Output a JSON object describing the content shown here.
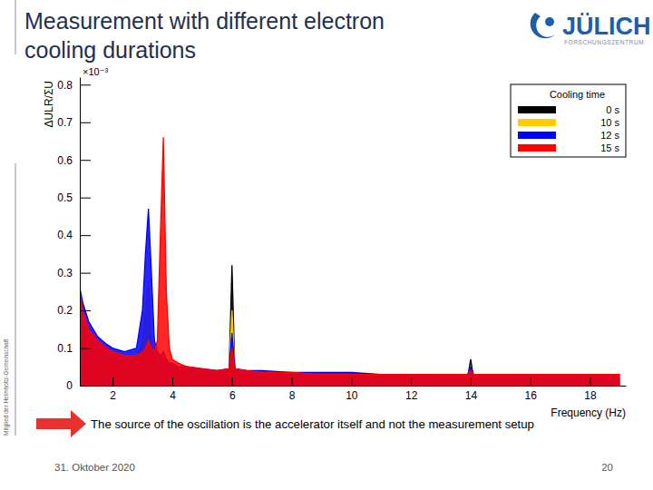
{
  "slide": {
    "title": [
      "Measurement with different electron",
      "cooling durations"
    ],
    "logo": "JÜLICH",
    "logo_subtitle": "FORSCHUNGSZENTRUM",
    "side_text": "Mitglied der Helmholtz-Gemeinschaft",
    "note": "The source of the oscillation is the accelerator itself and not the measurement setup",
    "date": "31. Oktober 2020",
    "page": "20"
  },
  "chart_data": {
    "type": "line",
    "xlabel": "Frequency (Hz)",
    "ylabel": "ΔULR/ΣU",
    "annotations": [
      "×10⁻³"
    ],
    "legend_title": "Cooling time",
    "legend": "upper right",
    "grid": false,
    "xlim": [
      0.9,
      19.2
    ],
    "xticks": [
      2,
      4,
      6,
      8,
      10,
      12,
      14,
      16,
      18
    ],
    "ylim": [
      0,
      0.82
    ],
    "yticks": [
      0,
      0.1,
      0.2,
      0.3,
      0.4,
      0.5,
      0.6,
      0.7,
      0.8
    ],
    "x": [
      0.9,
      1.0,
      1.2,
      1.5,
      1.8,
      2.0,
      2.4,
      2.8,
      3.0,
      3.1,
      3.2,
      3.3,
      3.4,
      3.5,
      3.6,
      3.7,
      3.8,
      3.9,
      4.0,
      4.2,
      4.5,
      5.0,
      5.5,
      5.9,
      6.0,
      6.1,
      6.5,
      7.0,
      8.0,
      9.0,
      10,
      11,
      12,
      13,
      13.9,
      14.0,
      14.1,
      15,
      16,
      17,
      18,
      19
    ],
    "series": [
      {
        "name": "0 s",
        "color": "#000000",
        "values": [
          0.08,
          0.06,
          0.05,
          0.04,
          0.035,
          0.03,
          0.03,
          0.03,
          0.03,
          0.03,
          0.03,
          0.03,
          0.03,
          0.03,
          0.03,
          0.03,
          0.03,
          0.025,
          0.025,
          0.025,
          0.025,
          0.02,
          0.02,
          0.03,
          0.32,
          0.03,
          0.02,
          0.02,
          0.02,
          0.02,
          0.02,
          0.02,
          0.02,
          0.02,
          0.02,
          0.07,
          0.02,
          0.02,
          0.02,
          0.02,
          0.02,
          0.02
        ]
      },
      {
        "name": "10 s",
        "color": "#ffcc00",
        "values": [
          0.2,
          0.16,
          0.12,
          0.09,
          0.08,
          0.07,
          0.06,
          0.07,
          0.12,
          0.2,
          0.28,
          0.12,
          0.07,
          0.06,
          0.06,
          0.08,
          0.06,
          0.05,
          0.05,
          0.04,
          0.04,
          0.03,
          0.03,
          0.04,
          0.2,
          0.04,
          0.03,
          0.03,
          0.03,
          0.025,
          0.025,
          0.025,
          0.025,
          0.02,
          0.02,
          0.05,
          0.02,
          0.02,
          0.02,
          0.02,
          0.02,
          0.02
        ]
      },
      {
        "name": "12 s",
        "color": "#0000ff",
        "values": [
          0.26,
          0.22,
          0.17,
          0.13,
          0.11,
          0.1,
          0.09,
          0.1,
          0.2,
          0.35,
          0.47,
          0.3,
          0.12,
          0.09,
          0.08,
          0.09,
          0.07,
          0.06,
          0.06,
          0.05,
          0.05,
          0.045,
          0.04,
          0.045,
          0.14,
          0.045,
          0.04,
          0.04,
          0.035,
          0.035,
          0.035,
          0.03,
          0.03,
          0.03,
          0.03,
          0.05,
          0.03,
          0.03,
          0.03,
          0.03,
          0.03,
          0.03
        ]
      },
      {
        "name": "15 s",
        "color": "#ff0000",
        "values": [
          0.25,
          0.2,
          0.15,
          0.12,
          0.1,
          0.09,
          0.08,
          0.08,
          0.09,
          0.1,
          0.12,
          0.1,
          0.09,
          0.12,
          0.4,
          0.66,
          0.25,
          0.1,
          0.07,
          0.06,
          0.05,
          0.045,
          0.04,
          0.045,
          0.1,
          0.045,
          0.04,
          0.035,
          0.035,
          0.03,
          0.03,
          0.03,
          0.03,
          0.03,
          0.03,
          0.04,
          0.03,
          0.03,
          0.03,
          0.03,
          0.03,
          0.03
        ]
      }
    ]
  }
}
